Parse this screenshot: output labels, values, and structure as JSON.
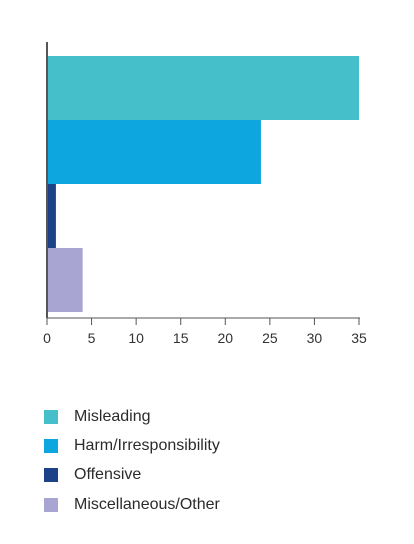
{
  "chart_data": {
    "type": "bar",
    "orientation": "horizontal",
    "categories": [
      "Misleading",
      "Harm/Irresponsibility",
      "Offensive",
      "Miscellaneous/Other"
    ],
    "values": [
      35,
      24,
      1,
      4
    ],
    "colors": [
      "#45bfca",
      "#0da6de",
      "#1c4387",
      "#a9a5d3"
    ],
    "title": "",
    "xlabel": "",
    "ylabel": "",
    "xlim": [
      0,
      35
    ],
    "xticks": [
      0,
      5,
      10,
      15,
      20,
      25,
      30,
      35
    ],
    "grid": false,
    "legend_position": "bottom"
  }
}
